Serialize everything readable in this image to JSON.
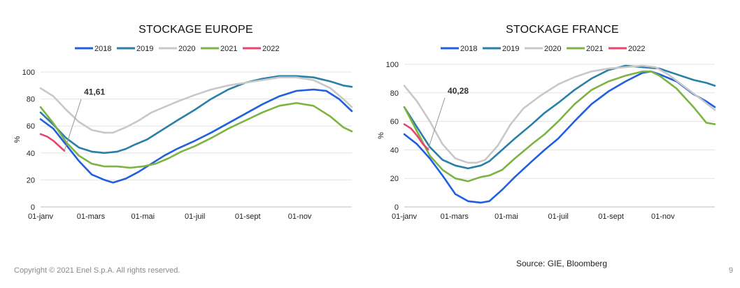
{
  "footer": {
    "copyright": "Copyright © 2021 Enel S.p.A. All rights reserved.",
    "source": "Source: GIE, Bloomberg",
    "page_number": "9"
  },
  "chart_data": [
    {
      "type": "line",
      "title": "STOCKAGE EUROPE",
      "ylabel": "%",
      "ylim": [
        0,
        100
      ],
      "yticks": [
        0,
        20,
        40,
        60,
        80,
        100
      ],
      "xlim": [
        0,
        365
      ],
      "xticks": [
        {
          "x": 0,
          "label": "01-janv"
        },
        {
          "x": 59,
          "label": "01-mars"
        },
        {
          "x": 120,
          "label": "01-mai"
        },
        {
          "x": 181,
          "label": "01-juil"
        },
        {
          "x": 243,
          "label": "01-sept"
        },
        {
          "x": 304,
          "label": "01-nov"
        }
      ],
      "legend_position": "top",
      "annotation": {
        "text": "41,61",
        "x": 28,
        "y": 41.61
      },
      "series": [
        {
          "name": "2018",
          "color": "#1f5fe0",
          "points": [
            [
              0,
              65
            ],
            [
              15,
              58
            ],
            [
              30,
              46
            ],
            [
              45,
              34
            ],
            [
              60,
              24
            ],
            [
              75,
              20
            ],
            [
              85,
              18
            ],
            [
              100,
              21
            ],
            [
              115,
              26
            ],
            [
              130,
              32
            ],
            [
              145,
              38
            ],
            [
              160,
              43
            ],
            [
              181,
              49
            ],
            [
              200,
              55
            ],
            [
              220,
              62
            ],
            [
              240,
              69
            ],
            [
              260,
              76
            ],
            [
              280,
              82
            ],
            [
              300,
              86
            ],
            [
              320,
              87
            ],
            [
              335,
              86
            ],
            [
              350,
              80
            ],
            [
              365,
              71
            ]
          ]
        },
        {
          "name": "2019",
          "color": "#2a7fa8",
          "points": [
            [
              0,
              70
            ],
            [
              15,
              61
            ],
            [
              30,
              51
            ],
            [
              45,
              44
            ],
            [
              60,
              41
            ],
            [
              75,
              40
            ],
            [
              90,
              41
            ],
            [
              100,
              43
            ],
            [
              110,
              46
            ],
            [
              125,
              50
            ],
            [
              140,
              56
            ],
            [
              160,
              64
            ],
            [
              181,
              72
            ],
            [
              200,
              80
            ],
            [
              220,
              87
            ],
            [
              240,
              92
            ],
            [
              260,
              95
            ],
            [
              280,
              97
            ],
            [
              300,
              97
            ],
            [
              320,
              96
            ],
            [
              340,
              93
            ],
            [
              355,
              90
            ],
            [
              365,
              89
            ]
          ]
        },
        {
          "name": "2020",
          "color": "#c8c8c8",
          "points": [
            [
              0,
              88
            ],
            [
              15,
              82
            ],
            [
              30,
              72
            ],
            [
              45,
              63
            ],
            [
              60,
              57
            ],
            [
              75,
              55
            ],
            [
              85,
              55
            ],
            [
              100,
              59
            ],
            [
              115,
              64
            ],
            [
              130,
              70
            ],
            [
              145,
              74
            ],
            [
              160,
              78
            ],
            [
              181,
              83
            ],
            [
              200,
              87
            ],
            [
              220,
              90
            ],
            [
              240,
              92
            ],
            [
              260,
              94
            ],
            [
              280,
              96
            ],
            [
              300,
              96
            ],
            [
              320,
              94
            ],
            [
              340,
              88
            ],
            [
              355,
              80
            ],
            [
              365,
              74
            ]
          ]
        },
        {
          "name": "2021",
          "color": "#7cb342",
          "points": [
            [
              0,
              74
            ],
            [
              15,
              62
            ],
            [
              30,
              48
            ],
            [
              45,
              38
            ],
            [
              60,
              32
            ],
            [
              75,
              30
            ],
            [
              90,
              30
            ],
            [
              105,
              29
            ],
            [
              120,
              30
            ],
            [
              135,
              32
            ],
            [
              150,
              36
            ],
            [
              165,
              41
            ],
            [
              181,
              45
            ],
            [
              200,
              51
            ],
            [
              220,
              58
            ],
            [
              240,
              64
            ],
            [
              260,
              70
            ],
            [
              280,
              75
            ],
            [
              300,
              77
            ],
            [
              320,
              75
            ],
            [
              340,
              67
            ],
            [
              355,
              59
            ],
            [
              365,
              56
            ]
          ]
        },
        {
          "name": "2022",
          "color": "#e8446d",
          "points": [
            [
              0,
              54
            ],
            [
              8,
              52
            ],
            [
              15,
              49
            ],
            [
              22,
              45
            ],
            [
              28,
              41.61
            ]
          ]
        }
      ]
    },
    {
      "type": "line",
      "title": "STOCKAGE FRANCE",
      "ylabel": "%",
      "ylim": [
        0,
        100
      ],
      "yticks": [
        0,
        20,
        40,
        60,
        80,
        100
      ],
      "xlim": [
        0,
        365
      ],
      "xticks": [
        {
          "x": 0,
          "label": "01-janv"
        },
        {
          "x": 59,
          "label": "01-mars"
        },
        {
          "x": 120,
          "label": "01-mai"
        },
        {
          "x": 181,
          "label": "01-juil"
        },
        {
          "x": 243,
          "label": "01-sept"
        },
        {
          "x": 304,
          "label": "01-nov"
        }
      ],
      "legend_position": "top",
      "annotation": {
        "text": "40,28",
        "x": 28,
        "y": 40.28
      },
      "series": [
        {
          "name": "2018",
          "color": "#1f5fe0",
          "points": [
            [
              0,
              51
            ],
            [
              15,
              44
            ],
            [
              30,
              34
            ],
            [
              45,
              22
            ],
            [
              60,
              9
            ],
            [
              75,
              4
            ],
            [
              90,
              3
            ],
            [
              100,
              4
            ],
            [
              115,
              12
            ],
            [
              130,
              21
            ],
            [
              150,
              32
            ],
            [
              165,
              40
            ],
            [
              181,
              48
            ],
            [
              200,
              60
            ],
            [
              220,
              72
            ],
            [
              240,
              81
            ],
            [
              260,
              88
            ],
            [
              280,
              94
            ],
            [
              290,
              95
            ],
            [
              300,
              93
            ],
            [
              320,
              88
            ],
            [
              340,
              79
            ],
            [
              355,
              74
            ],
            [
              365,
              70
            ]
          ]
        },
        {
          "name": "2019",
          "color": "#2a7fa8",
          "points": [
            [
              0,
              70
            ],
            [
              15,
              56
            ],
            [
              30,
              42
            ],
            [
              45,
              33
            ],
            [
              60,
              29
            ],
            [
              75,
              27
            ],
            [
              90,
              29
            ],
            [
              100,
              32
            ],
            [
              115,
              40
            ],
            [
              130,
              48
            ],
            [
              150,
              58
            ],
            [
              165,
              66
            ],
            [
              181,
              73
            ],
            [
              200,
              82
            ],
            [
              220,
              90
            ],
            [
              240,
              96
            ],
            [
              260,
              99
            ],
            [
              280,
              98
            ],
            [
              300,
              97
            ],
            [
              320,
              93
            ],
            [
              340,
              89
            ],
            [
              355,
              87
            ],
            [
              365,
              85
            ]
          ]
        },
        {
          "name": "2020",
          "color": "#c8c8c8",
          "points": [
            [
              0,
              85
            ],
            [
              15,
              74
            ],
            [
              30,
              60
            ],
            [
              45,
              44
            ],
            [
              60,
              34
            ],
            [
              75,
              31
            ],
            [
              85,
              31
            ],
            [
              95,
              33
            ],
            [
              110,
              43
            ],
            [
              125,
              58
            ],
            [
              140,
              69
            ],
            [
              160,
              78
            ],
            [
              181,
              86
            ],
            [
              200,
              91
            ],
            [
              220,
              95
            ],
            [
              240,
              97
            ],
            [
              260,
              98
            ],
            [
              280,
              99
            ],
            [
              295,
              98
            ],
            [
              310,
              93
            ],
            [
              330,
              84
            ],
            [
              350,
              75
            ],
            [
              365,
              68
            ]
          ]
        },
        {
          "name": "2021",
          "color": "#7cb342",
          "points": [
            [
              0,
              70
            ],
            [
              15,
              53
            ],
            [
              30,
              36
            ],
            [
              45,
              26
            ],
            [
              60,
              20
            ],
            [
              75,
              18
            ],
            [
              90,
              21
            ],
            [
              100,
              22
            ],
            [
              115,
              26
            ],
            [
              130,
              34
            ],
            [
              150,
              44
            ],
            [
              165,
              51
            ],
            [
              181,
              60
            ],
            [
              200,
              72
            ],
            [
              220,
              82
            ],
            [
              240,
              88
            ],
            [
              260,
              92
            ],
            [
              280,
              95
            ],
            [
              290,
              95
            ],
            [
              300,
              92
            ],
            [
              320,
              83
            ],
            [
              340,
              70
            ],
            [
              355,
              59
            ],
            [
              365,
              58
            ]
          ]
        },
        {
          "name": "2022",
          "color": "#e8446d",
          "points": [
            [
              0,
              58
            ],
            [
              8,
              55
            ],
            [
              15,
              50
            ],
            [
              22,
              44
            ],
            [
              28,
              40.28
            ]
          ]
        }
      ]
    }
  ]
}
